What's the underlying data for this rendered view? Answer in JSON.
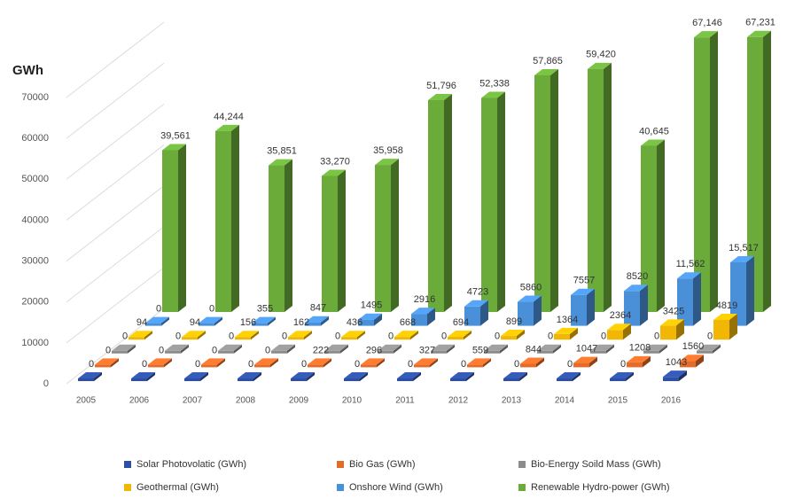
{
  "chart_data": {
    "type": "bar3d",
    "yaxis_title": "GWh",
    "categories": [
      "2005",
      "2006",
      "2007",
      "2008",
      "2009",
      "2010",
      "2011",
      "2012",
      "2013",
      "2014",
      "2015",
      "2016"
    ],
    "ylim": [
      0,
      70000
    ],
    "yticks": [
      0,
      10000,
      20000,
      30000,
      40000,
      50000,
      60000,
      70000
    ],
    "grid": true,
    "series": [
      {
        "name": "Solar Photovolatic (GWh)",
        "color": "#2e4fa3",
        "values": [
          0,
          0,
          0,
          0,
          0,
          0,
          0,
          0,
          0,
          0,
          0,
          1043
        ]
      },
      {
        "name": "Bio Gas (GWh)",
        "color": "#e46c2a",
        "values": [
          0,
          0,
          0,
          0,
          222,
          296,
          327,
          559,
          844,
          1047,
          1208,
          1560
        ]
      },
      {
        "name": "Bio-Energy Soild Mass (GWh)",
        "color": "#8c8c8c",
        "values": [
          0,
          0,
          0,
          0,
          0,
          0,
          0,
          0,
          0,
          0,
          0,
          0
        ]
      },
      {
        "name": "Geothermal (GWh)",
        "color": "#f2b705",
        "values": [
          94,
          94,
          156,
          162,
          436,
          668,
          694,
          899,
          1364,
          2364,
          3425,
          4819
        ]
      },
      {
        "name": "Onshore Wind (GWh)",
        "color": "#4a90d9",
        "values": [
          0,
          0,
          355,
          847,
          1495,
          2916,
          4723,
          5860,
          7557,
          8520,
          11562,
          15517
        ],
        "value_labels": [
          "0",
          "0",
          "355",
          "847",
          "1495",
          "2916",
          "4723",
          "5860",
          "7557",
          "8520",
          "11,562",
          "15,517"
        ]
      },
      {
        "name": "Renewable Hydro-power (GWh)",
        "color": "#6aab3a",
        "values": [
          39561,
          44244,
          35851,
          33270,
          35958,
          51796,
          52338,
          57865,
          59420,
          40645,
          67146,
          67231
        ],
        "value_labels": [
          "39,561",
          "44,244",
          "35,851",
          "33,270",
          "35,958",
          "51,796",
          "52,338",
          "57,865",
          "59,420",
          "40,645",
          "67,146",
          "67,231"
        ]
      }
    ]
  }
}
